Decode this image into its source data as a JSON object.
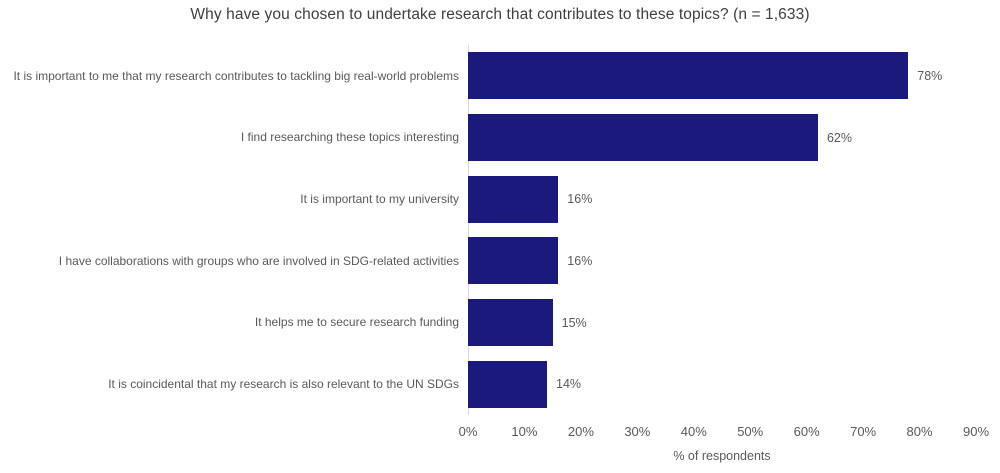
{
  "chart_data": {
    "type": "bar",
    "orientation": "horizontal",
    "title": "Why have you chosen to undertake research that contributes to these topics? (n = 1,633)",
    "categories": [
      "It is important to me that my research contributes to tackling big real-world problems",
      "I find researching these topics interesting",
      "It is important to my university",
      "I have collaborations with groups who are involved in SDG-related activities",
      "It helps me to secure research funding",
      "It is coincidental that my research is also relevant to the UN SDGs"
    ],
    "values": [
      78,
      62,
      16,
      16,
      15,
      14
    ],
    "value_labels": [
      "78%",
      "62%",
      "16%",
      "16%",
      "15%",
      "14%"
    ],
    "xlabel": "% of respondents",
    "x_ticks": [
      "0%",
      "10%",
      "20%",
      "30%",
      "40%",
      "50%",
      "60%",
      "70%",
      "80%",
      "90%"
    ],
    "xlim": [
      0,
      90
    ],
    "grid": false,
    "legend": "none",
    "bar_color": "#1A1A7D",
    "axis_line_color": "#D9D9D9",
    "title_color": "#404040",
    "label_color": "#595959"
  }
}
